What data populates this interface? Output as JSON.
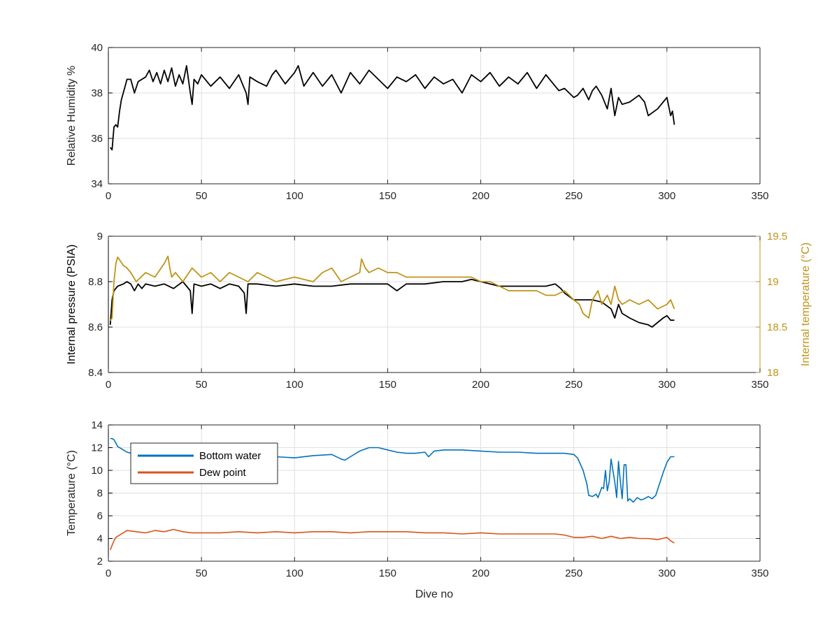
{
  "chart_data": [
    {
      "type": "line",
      "xlabel": "",
      "ylabel": "Relative Humidity %",
      "xlim": [
        0,
        350
      ],
      "ylim": [
        34,
        40
      ],
      "xticks": [
        0,
        50,
        100,
        150,
        200,
        250,
        300,
        350
      ],
      "yticks": [
        34,
        36,
        38,
        40
      ],
      "grid": true,
      "series": [
        {
          "color": "#000000",
          "x": [
            1,
            2,
            3,
            4,
            5,
            6,
            7,
            8,
            9,
            10,
            12,
            14,
            16,
            18,
            20,
            22,
            24,
            26,
            28,
            30,
            32,
            34,
            36,
            38,
            40,
            42,
            44,
            45,
            46,
            48,
            50,
            55,
            60,
            65,
            70,
            72,
            74,
            75,
            76,
            80,
            85,
            88,
            90,
            95,
            100,
            102,
            105,
            110,
            115,
            120,
            125,
            130,
            135,
            140,
            145,
            150,
            155,
            160,
            165,
            170,
            175,
            180,
            185,
            190,
            195,
            200,
            205,
            210,
            215,
            220,
            225,
            230,
            235,
            238,
            240,
            242,
            245,
            250,
            252,
            255,
            258,
            260,
            262,
            265,
            268,
            270,
            272,
            274,
            276,
            280,
            285,
            288,
            290,
            295,
            300,
            302,
            303,
            304
          ],
          "y": [
            35.6,
            35.5,
            36.5,
            36.6,
            36.5,
            37.2,
            37.7,
            38.0,
            38.3,
            38.6,
            38.6,
            38.0,
            38.5,
            38.6,
            38.7,
            39.0,
            38.5,
            38.9,
            38.4,
            39.0,
            38.5,
            39.1,
            38.3,
            38.8,
            38.4,
            39.2,
            38.0,
            37.5,
            38.6,
            38.4,
            38.8,
            38.3,
            38.7,
            38.2,
            38.8,
            38.4,
            38.0,
            37.5,
            38.7,
            38.5,
            38.3,
            38.8,
            39.0,
            38.4,
            38.9,
            39.2,
            38.3,
            38.9,
            38.3,
            38.8,
            38.0,
            38.9,
            38.4,
            39.0,
            38.6,
            38.2,
            38.7,
            38.5,
            38.8,
            38.2,
            38.7,
            38.4,
            38.6,
            38.0,
            38.8,
            38.5,
            38.9,
            38.3,
            38.7,
            38.4,
            38.9,
            38.2,
            38.8,
            38.5,
            38.3,
            38.1,
            38.2,
            37.8,
            37.9,
            38.2,
            37.7,
            38.1,
            38.3,
            37.9,
            37.3,
            38.2,
            37.0,
            37.8,
            37.5,
            37.6,
            37.9,
            37.6,
            37.0,
            37.3,
            37.8,
            37.0,
            37.2,
            36.6
          ]
        }
      ]
    },
    {
      "type": "line",
      "xlabel": "",
      "ylabel": "Internal pressure (PSIA)",
      "ylabel_right": "Internal temperature (°C)",
      "xlim": [
        0,
        350
      ],
      "ylim": [
        8.4,
        9
      ],
      "ylim_right": [
        18,
        19.5
      ],
      "xticks": [
        0,
        50,
        100,
        150,
        200,
        250,
        300,
        350
      ],
      "yticks": [
        8.4,
        8.6,
        8.8,
        9
      ],
      "yticks_labels": [
        "8.4",
        "8.6",
        "8.8",
        "9"
      ],
      "yticks_right": [
        18,
        18.5,
        19,
        19.5
      ],
      "grid": true,
      "series": [
        {
          "axis": "left",
          "color": "#000000",
          "x": [
            1,
            2,
            3,
            5,
            8,
            10,
            12,
            14,
            16,
            18,
            20,
            25,
            30,
            35,
            40,
            44,
            45,
            46,
            50,
            55,
            60,
            65,
            70,
            73,
            74,
            75,
            80,
            90,
            100,
            110,
            120,
            130,
            140,
            150,
            155,
            160,
            170,
            180,
            190,
            195,
            200,
            205,
            210,
            215,
            220,
            225,
            230,
            235,
            240,
            243,
            245,
            250,
            255,
            260,
            265,
            270,
            272,
            274,
            276,
            280,
            285,
            290,
            292,
            295,
            298,
            300,
            302,
            304
          ],
          "y": [
            8.61,
            8.72,
            8.76,
            8.78,
            8.79,
            8.8,
            8.79,
            8.76,
            8.79,
            8.77,
            8.79,
            8.78,
            8.79,
            8.77,
            8.8,
            8.76,
            8.66,
            8.79,
            8.78,
            8.79,
            8.77,
            8.79,
            8.78,
            8.75,
            8.66,
            8.79,
            8.79,
            8.78,
            8.79,
            8.78,
            8.78,
            8.79,
            8.79,
            8.79,
            8.76,
            8.79,
            8.79,
            8.8,
            8.8,
            8.81,
            8.8,
            8.79,
            8.78,
            8.78,
            8.78,
            8.78,
            8.78,
            8.78,
            8.79,
            8.77,
            8.75,
            8.72,
            8.72,
            8.72,
            8.71,
            8.68,
            8.64,
            8.7,
            8.66,
            8.64,
            8.62,
            8.61,
            8.6,
            8.62,
            8.64,
            8.65,
            8.63,
            8.63
          ]
        },
        {
          "axis": "right",
          "color": "#C09317",
          "x": [
            1,
            2,
            3,
            4,
            5,
            6,
            8,
            10,
            12,
            15,
            20,
            25,
            30,
            32,
            33,
            34,
            36,
            40,
            45,
            50,
            55,
            60,
            65,
            70,
            75,
            80,
            90,
            100,
            110,
            115,
            120,
            125,
            130,
            135,
            136,
            138,
            140,
            145,
            150,
            155,
            160,
            170,
            180,
            190,
            195,
            200,
            205,
            210,
            215,
            220,
            225,
            230,
            235,
            240,
            245,
            250,
            253,
            255,
            258,
            260,
            263,
            265,
            268,
            270,
            272,
            274,
            276,
            280,
            285,
            290,
            295,
            300,
            302,
            304
          ],
          "y": [
            18.57,
            18.6,
            19.0,
            19.2,
            19.27,
            19.24,
            19.18,
            19.15,
            19.1,
            19.0,
            19.1,
            19.05,
            19.2,
            19.28,
            19.15,
            19.05,
            19.1,
            19.0,
            19.15,
            19.05,
            19.1,
            19.0,
            19.1,
            19.05,
            19.0,
            19.1,
            19.0,
            19.05,
            19.0,
            19.1,
            19.15,
            19.0,
            19.05,
            19.1,
            19.25,
            19.15,
            19.1,
            19.15,
            19.1,
            19.1,
            19.05,
            19.05,
            19.05,
            19.05,
            19.05,
            19.0,
            19.0,
            18.95,
            18.9,
            18.9,
            18.9,
            18.9,
            18.85,
            18.85,
            18.9,
            18.8,
            18.75,
            18.65,
            18.6,
            18.8,
            18.9,
            18.75,
            18.85,
            18.75,
            18.95,
            18.8,
            18.75,
            18.8,
            18.75,
            18.8,
            18.7,
            18.75,
            18.8,
            18.7
          ]
        }
      ]
    },
    {
      "type": "line",
      "xlabel": "Dive no",
      "ylabel": "Temperature (°C)",
      "xlim": [
        0,
        350
      ],
      "ylim": [
        2,
        14
      ],
      "xticks": [
        0,
        50,
        100,
        150,
        200,
        250,
        300,
        350
      ],
      "yticks": [
        2,
        4,
        6,
        8,
        10,
        12,
        14
      ],
      "grid": true,
      "legend_position": "top-left",
      "series": [
        {
          "name": "Bottom water",
          "color": "#0072BD",
          "x": [
            1,
            2,
            3,
            4,
            5,
            7,
            10,
            15,
            20,
            30,
            40,
            50,
            60,
            70,
            80,
            90,
            100,
            110,
            120,
            125,
            127,
            130,
            135,
            140,
            145,
            150,
            155,
            160,
            165,
            170,
            172,
            175,
            180,
            190,
            200,
            210,
            220,
            230,
            240,
            245,
            250,
            252,
            255,
            257,
            258,
            260,
            262,
            263,
            265,
            266,
            267,
            268,
            269,
            270,
            271,
            272,
            273,
            274,
            275,
            276,
            277,
            278,
            279,
            280,
            282,
            284,
            286,
            288,
            290,
            292,
            294,
            296,
            298,
            300,
            302,
            304
          ],
          "y": [
            12.8,
            12.8,
            12.7,
            12.4,
            12.1,
            11.9,
            11.6,
            11.4,
            11.5,
            11.3,
            11.3,
            11.4,
            11.2,
            11.3,
            11.4,
            11.2,
            11.1,
            11.3,
            11.4,
            11.0,
            10.9,
            11.2,
            11.7,
            12.0,
            12.0,
            11.8,
            11.6,
            11.5,
            11.5,
            11.6,
            11.2,
            11.7,
            11.8,
            11.8,
            11.7,
            11.6,
            11.6,
            11.5,
            11.5,
            11.5,
            11.4,
            11.1,
            10.0,
            8.8,
            7.8,
            7.7,
            7.9,
            7.6,
            8.5,
            8.4,
            10.0,
            8.2,
            9.0,
            11.0,
            10.0,
            9.0,
            7.6,
            10.8,
            9.0,
            7.5,
            10.5,
            10.5,
            7.3,
            7.5,
            7.2,
            7.6,
            7.4,
            7.5,
            7.7,
            7.5,
            7.8,
            8.8,
            9.8,
            10.7,
            11.2,
            11.2
          ]
        },
        {
          "name": "Dew point",
          "color": "#D95319",
          "x": [
            1,
            2,
            3,
            4,
            6,
            8,
            10,
            15,
            20,
            25,
            30,
            35,
            40,
            45,
            50,
            60,
            70,
            80,
            90,
            100,
            110,
            120,
            130,
            140,
            150,
            160,
            170,
            180,
            190,
            200,
            210,
            220,
            230,
            240,
            245,
            250,
            255,
            260,
            265,
            270,
            275,
            280,
            285,
            290,
            295,
            300,
            302,
            304
          ],
          "y": [
            3.0,
            3.4,
            3.8,
            4.1,
            4.3,
            4.5,
            4.7,
            4.6,
            4.5,
            4.7,
            4.6,
            4.8,
            4.6,
            4.5,
            4.5,
            4.5,
            4.6,
            4.5,
            4.6,
            4.5,
            4.6,
            4.6,
            4.5,
            4.6,
            4.6,
            4.6,
            4.5,
            4.5,
            4.4,
            4.5,
            4.4,
            4.4,
            4.4,
            4.4,
            4.3,
            4.1,
            4.1,
            4.2,
            4.0,
            4.2,
            4.0,
            4.1,
            4.0,
            4.0,
            3.9,
            4.1,
            3.8,
            3.6
          ]
        }
      ]
    }
  ]
}
